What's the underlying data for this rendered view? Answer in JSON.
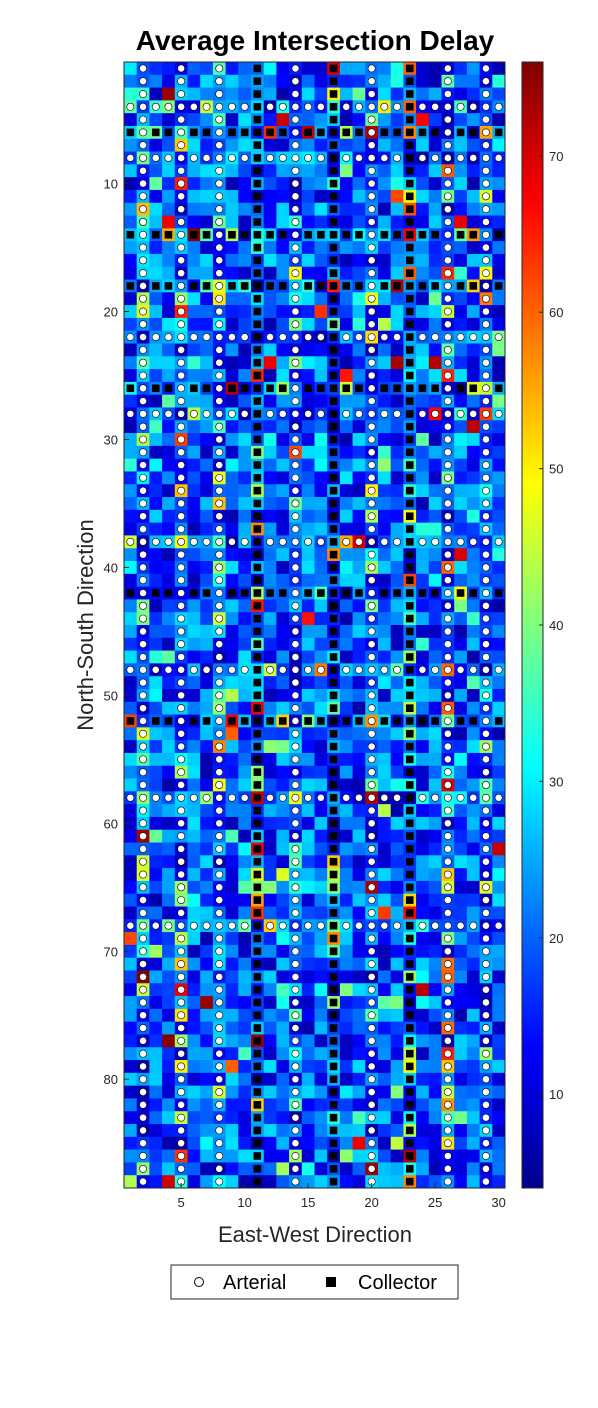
{
  "chart_data": {
    "type": "heatmap",
    "title": "Average Intersection Delay",
    "xlabel": "East-West Direction",
    "ylabel": "North-South Direction",
    "x_range": [
      1,
      30
    ],
    "y_range": [
      1,
      88
    ],
    "y_reversed": true,
    "x_ticks": [
      5,
      10,
      15,
      20,
      25,
      30
    ],
    "y_ticks": [
      10,
      20,
      30,
      40,
      50,
      60,
      70,
      80
    ],
    "value_range": [
      4,
      76
    ],
    "colorbar_ticks": [
      10,
      20,
      30,
      40,
      50,
      60,
      70
    ],
    "colormap": "jet",
    "arterial_columns": [
      2,
      5,
      8,
      14,
      20,
      26,
      29
    ],
    "collector_columns": [
      11,
      17,
      23
    ],
    "arterial_rows": [
      4,
      8,
      22,
      28,
      38,
      48,
      58,
      68
    ],
    "collector_rows": [
      6,
      14,
      18,
      26,
      42,
      52
    ],
    "legend": {
      "position": "bottom",
      "entries": [
        {
          "label": "Arterial",
          "marker": "circle",
          "color": "#ffffff"
        },
        {
          "label": "Collector",
          "marker": "square",
          "color": "#000000"
        }
      ]
    }
  }
}
